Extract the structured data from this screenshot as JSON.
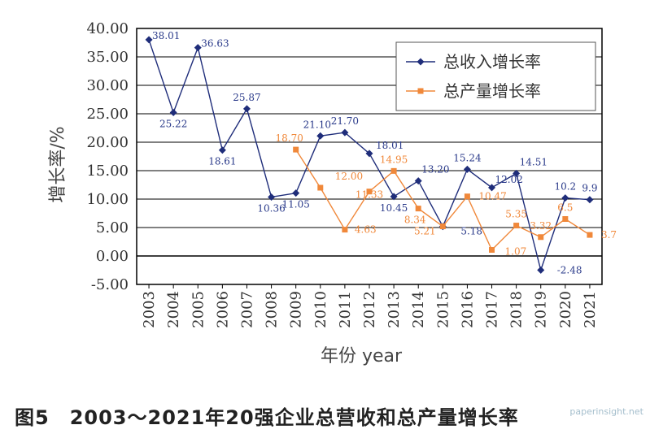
{
  "figure": {
    "caption": "图5　2003～2021年20强企业总营收和总产量增长率",
    "watermark": "paperinsight.net"
  },
  "chart_data": {
    "type": "line",
    "xlabel": "年份 year",
    "ylabel": "增长率/%",
    "ylim": [
      -5,
      40
    ],
    "yticks": [
      "40.00",
      "35.00",
      "30.00",
      "25.00",
      "20.00",
      "15.00",
      "10.00",
      "5.00",
      "0.00",
      "-5.00"
    ],
    "grid": true,
    "legend_position": "top-right",
    "categories": [
      "2003",
      "2004",
      "2005",
      "2006",
      "2007",
      "2008",
      "2009",
      "2010",
      "2011",
      "2012",
      "2013",
      "2014",
      "2015",
      "2016",
      "2017",
      "2018",
      "2019",
      "2020",
      "2021"
    ],
    "series": [
      {
        "name": "总收入增长率",
        "color": "#1f2d7a",
        "marker": "diamond",
        "values": [
          38.01,
          25.22,
          36.63,
          18.61,
          25.87,
          10.36,
          11.05,
          21.1,
          21.7,
          18.01,
          10.45,
          13.2,
          5.18,
          15.24,
          12.02,
          14.51,
          -2.48,
          10.2,
          9.9
        ],
        "labels": [
          "38.01",
          "25.22",
          "36.63",
          "18.61",
          "25.87",
          "10.36",
          "11.05",
          "21.10",
          "21.70",
          "18.01",
          "10.45",
          "13.20",
          "5.18",
          "15.24",
          "12.02",
          "14.51",
          "-2.48",
          "10.2",
          "9.9"
        ]
      },
      {
        "name": "总产量增长率",
        "color": "#f0883a",
        "marker": "square",
        "values": [
          null,
          null,
          null,
          null,
          null,
          null,
          18.7,
          12.0,
          4.63,
          11.33,
          14.95,
          8.34,
          5.21,
          10.47,
          1.07,
          5.35,
          3.32,
          6.5,
          3.7
        ],
        "labels": [
          "",
          "",
          "",
          "",
          "",
          "",
          "18.70",
          "12.00",
          "4.63",
          "11.33",
          "14.95",
          "8.34",
          "5.21",
          "10.47",
          "1.07",
          "5.35",
          "3.32",
          "6.5",
          "3.7"
        ]
      }
    ]
  }
}
